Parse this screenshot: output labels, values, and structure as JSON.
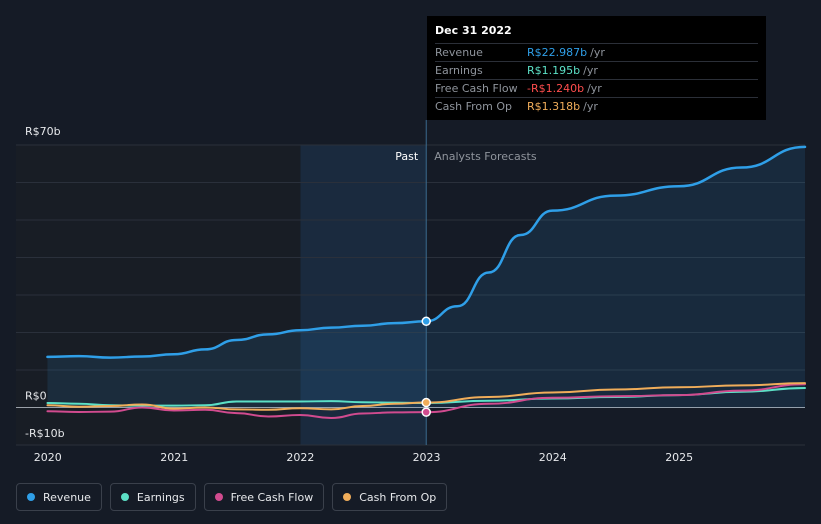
{
  "tooltip": {
    "date": "Dec 31 2022",
    "rows": [
      {
        "label": "Revenue",
        "value": "R$22.987b",
        "unit": "/yr",
        "color": "#2f9fe8"
      },
      {
        "label": "Earnings",
        "value": "R$1.195b",
        "unit": "/yr",
        "color": "#5ce0c6"
      },
      {
        "label": "Free Cash Flow",
        "value": "-R$1.240b",
        "unit": "/yr",
        "color": "#ff4d4d"
      },
      {
        "label": "Cash From Op",
        "value": "R$1.318b",
        "unit": "/yr",
        "color": "#f0ad5a"
      }
    ]
  },
  "legend": [
    {
      "label": "Revenue",
      "color": "#2f9fe8"
    },
    {
      "label": "Earnings",
      "color": "#5ce0c6"
    },
    {
      "label": "Free Cash Flow",
      "color": "#d14b8f"
    },
    {
      "label": "Cash From Op",
      "color": "#f0ad5a"
    }
  ],
  "chart_data": {
    "type": "line",
    "past_label": "Past",
    "forecast_label": "Analysts Forecasts",
    "y_tick_labels": [
      {
        "value": 70,
        "label": "R$70b"
      },
      {
        "value": 0,
        "label": "R$0"
      },
      {
        "value": -10,
        "label": "-R$10b"
      }
    ],
    "x_tick_labels": [
      "2020",
      "2021",
      "2022",
      "2023",
      "2024",
      "2025"
    ],
    "xlim": [
      "2019-10-01",
      "2025-12-31"
    ],
    "ylim": [
      -10,
      70
    ],
    "past_start": "2022-01-01",
    "divider_date": "2022-12-31",
    "series": [
      {
        "name": "Revenue",
        "color": "#2f9fe8",
        "points": [
          [
            "2019-12-31",
            13.5
          ],
          [
            "2020-03-31",
            13.7
          ],
          [
            "2020-06-30",
            13.3
          ],
          [
            "2020-09-30",
            13.6
          ],
          [
            "2020-12-31",
            14.2
          ],
          [
            "2021-03-31",
            15.5
          ],
          [
            "2021-06-30",
            18.0
          ],
          [
            "2021-09-30",
            19.5
          ],
          [
            "2021-12-31",
            20.6
          ],
          [
            "2022-03-31",
            21.3
          ],
          [
            "2022-06-30",
            21.8
          ],
          [
            "2022-09-30",
            22.5
          ],
          [
            "2022-12-31",
            22.987
          ],
          [
            "2023-03-31",
            27.0
          ],
          [
            "2023-06-30",
            36.0
          ],
          [
            "2023-09-30",
            46.0
          ],
          [
            "2023-12-31",
            52.5
          ],
          [
            "2024-06-30",
            56.5
          ],
          [
            "2024-12-31",
            59.0
          ],
          [
            "2025-06-30",
            64.0
          ],
          [
            "2025-12-31",
            69.5
          ]
        ],
        "marker_date": "2022-12-31"
      },
      {
        "name": "Earnings",
        "color": "#5ce0c6",
        "points": [
          [
            "2019-12-31",
            1.2
          ],
          [
            "2020-03-31",
            1.0
          ],
          [
            "2020-06-30",
            0.6
          ],
          [
            "2020-09-30",
            0.5
          ],
          [
            "2020-12-31",
            0.5
          ],
          [
            "2021-03-31",
            0.6
          ],
          [
            "2021-06-30",
            1.6
          ],
          [
            "2021-09-30",
            1.6
          ],
          [
            "2021-12-31",
            1.6
          ],
          [
            "2022-03-31",
            1.7
          ],
          [
            "2022-06-30",
            1.4
          ],
          [
            "2022-09-30",
            1.3
          ],
          [
            "2022-12-31",
            1.195
          ],
          [
            "2023-06-30",
            1.8
          ],
          [
            "2023-12-31",
            2.4
          ],
          [
            "2024-06-30",
            2.8
          ],
          [
            "2024-12-31",
            3.3
          ],
          [
            "2025-06-30",
            4.2
          ],
          [
            "2025-12-31",
            5.2
          ]
        ]
      },
      {
        "name": "Free Cash Flow",
        "color": "#d14b8f",
        "points": [
          [
            "2019-12-31",
            -1.0
          ],
          [
            "2020-03-31",
            -1.2
          ],
          [
            "2020-06-30",
            -1.1
          ],
          [
            "2020-09-30",
            0.0
          ],
          [
            "2020-12-31",
            -0.8
          ],
          [
            "2021-03-31",
            -0.6
          ],
          [
            "2021-06-30",
            -1.5
          ],
          [
            "2021-09-30",
            -2.4
          ],
          [
            "2021-12-31",
            -2.0
          ],
          [
            "2022-03-31",
            -2.8
          ],
          [
            "2022-06-30",
            -1.6
          ],
          [
            "2022-09-30",
            -1.3
          ],
          [
            "2022-12-31",
            -1.24
          ],
          [
            "2023-06-30",
            1.0
          ],
          [
            "2023-12-31",
            2.6
          ],
          [
            "2024-06-30",
            3.0
          ],
          [
            "2024-12-31",
            3.3
          ],
          [
            "2025-06-30",
            4.5
          ],
          [
            "2025-12-31",
            6.2
          ]
        ]
      },
      {
        "name": "Cash From Op",
        "color": "#f0ad5a",
        "points": [
          [
            "2019-12-31",
            0.6
          ],
          [
            "2020-03-31",
            0.2
          ],
          [
            "2020-06-30",
            0.4
          ],
          [
            "2020-09-30",
            0.8
          ],
          [
            "2020-12-31",
            -0.3
          ],
          [
            "2021-03-31",
            0.0
          ],
          [
            "2021-06-30",
            -0.5
          ],
          [
            "2021-09-30",
            -0.6
          ],
          [
            "2021-12-31",
            -0.2
          ],
          [
            "2022-03-31",
            -0.5
          ],
          [
            "2022-06-30",
            0.4
          ],
          [
            "2022-09-30",
            1.0
          ],
          [
            "2022-12-31",
            1.318
          ],
          [
            "2023-06-30",
            2.8
          ],
          [
            "2023-12-31",
            4.0
          ],
          [
            "2024-06-30",
            4.8
          ],
          [
            "2024-12-31",
            5.4
          ],
          [
            "2025-06-30",
            5.9
          ],
          [
            "2025-12-31",
            6.5
          ]
        ],
        "marker_date": "2022-12-31"
      }
    ]
  }
}
